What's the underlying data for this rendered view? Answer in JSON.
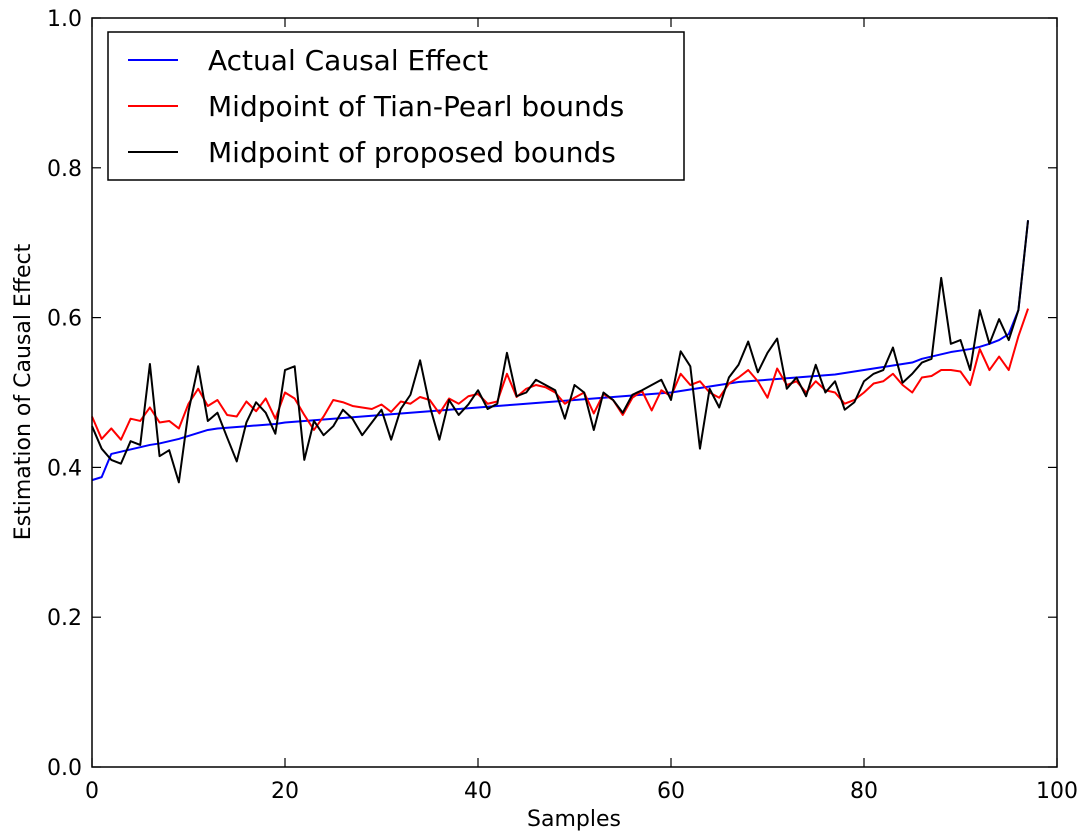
{
  "chart_data": {
    "type": "line",
    "title": "",
    "xlabel": "Samples",
    "ylabel": "Estimation of Causal Effect",
    "xlim": [
      0,
      100
    ],
    "ylim": [
      0.0,
      1.0
    ],
    "xticks": [
      "0",
      "20",
      "40",
      "60",
      "80",
      "100"
    ],
    "yticks": [
      "0.0",
      "0.2",
      "0.4",
      "0.6",
      "0.8",
      "1.0"
    ],
    "grid": false,
    "legend_position": "top-left",
    "series": [
      {
        "name": "Actual Causal Effect",
        "color": "#0000ff",
        "values": [
          0.383,
          0.387,
          0.418,
          0.421,
          0.424,
          0.427,
          0.43,
          0.432,
          0.435,
          0.438,
          0.442,
          0.446,
          0.45,
          0.452,
          0.453,
          0.454,
          0.455,
          0.456,
          0.457,
          0.458,
          0.46,
          0.461,
          0.462,
          0.463,
          0.464,
          0.465,
          0.466,
          0.467,
          0.468,
          0.469,
          0.47,
          0.471,
          0.472,
          0.473,
          0.474,
          0.475,
          0.476,
          0.477,
          0.478,
          0.479,
          0.48,
          0.481,
          0.482,
          0.483,
          0.484,
          0.485,
          0.486,
          0.487,
          0.488,
          0.489,
          0.49,
          0.491,
          0.492,
          0.493,
          0.494,
          0.495,
          0.496,
          0.497,
          0.498,
          0.499,
          0.5,
          0.502,
          0.504,
          0.506,
          0.508,
          0.51,
          0.512,
          0.514,
          0.515,
          0.516,
          0.517,
          0.518,
          0.519,
          0.52,
          0.521,
          0.522,
          0.523,
          0.524,
          0.526,
          0.528,
          0.53,
          0.532,
          0.534,
          0.536,
          0.538,
          0.54,
          0.545,
          0.548,
          0.551,
          0.554,
          0.556,
          0.558,
          0.561,
          0.565,
          0.57,
          0.578,
          0.61,
          0.73
        ]
      },
      {
        "name": "Midpoint of Tian-Pearl bounds",
        "color": "#ff0000",
        "values": [
          0.468,
          0.438,
          0.452,
          0.437,
          0.465,
          0.462,
          0.48,
          0.46,
          0.462,
          0.452,
          0.485,
          0.505,
          0.482,
          0.49,
          0.47,
          0.468,
          0.488,
          0.475,
          0.492,
          0.465,
          0.5,
          0.492,
          0.47,
          0.45,
          0.468,
          0.49,
          0.487,
          0.482,
          0.48,
          0.478,
          0.484,
          0.474,
          0.488,
          0.485,
          0.494,
          0.49,
          0.472,
          0.492,
          0.485,
          0.495,
          0.498,
          0.485,
          0.488,
          0.525,
          0.494,
          0.505,
          0.51,
          0.507,
          0.5,
          0.485,
          0.493,
          0.5,
          0.472,
          0.498,
          0.49,
          0.47,
          0.493,
          0.502,
          0.476,
          0.503,
          0.495,
          0.525,
          0.51,
          0.515,
          0.5,
          0.493,
          0.512,
          0.52,
          0.53,
          0.515,
          0.493,
          0.532,
          0.51,
          0.515,
          0.5,
          0.515,
          0.503,
          0.5,
          0.485,
          0.49,
          0.5,
          0.512,
          0.515,
          0.525,
          0.51,
          0.5,
          0.52,
          0.522,
          0.53,
          0.53,
          0.528,
          0.51,
          0.558,
          0.53,
          0.548,
          0.53,
          0.575,
          0.612
        ]
      },
      {
        "name": "Midpoint of proposed bounds",
        "color": "#000000",
        "values": [
          0.455,
          0.425,
          0.41,
          0.405,
          0.435,
          0.43,
          0.538,
          0.415,
          0.423,
          0.38,
          0.475,
          0.535,
          0.462,
          0.473,
          0.44,
          0.408,
          0.46,
          0.487,
          0.473,
          0.445,
          0.53,
          0.535,
          0.41,
          0.462,
          0.443,
          0.455,
          0.477,
          0.465,
          0.443,
          0.46,
          0.477,
          0.437,
          0.478,
          0.497,
          0.543,
          0.482,
          0.437,
          0.49,
          0.47,
          0.484,
          0.503,
          0.478,
          0.485,
          0.553,
          0.495,
          0.5,
          0.517,
          0.51,
          0.503,
          0.465,
          0.51,
          0.5,
          0.45,
          0.5,
          0.49,
          0.473,
          0.497,
          0.503,
          0.51,
          0.517,
          0.49,
          0.555,
          0.535,
          0.425,
          0.505,
          0.48,
          0.52,
          0.537,
          0.568,
          0.527,
          0.553,
          0.572,
          0.505,
          0.52,
          0.495,
          0.537,
          0.5,
          0.515,
          0.477,
          0.487,
          0.515,
          0.525,
          0.53,
          0.56,
          0.513,
          0.525,
          0.54,
          0.545,
          0.653,
          0.565,
          0.57,
          0.53,
          0.61,
          0.565,
          0.598,
          0.57,
          0.61,
          0.73
        ]
      }
    ]
  }
}
